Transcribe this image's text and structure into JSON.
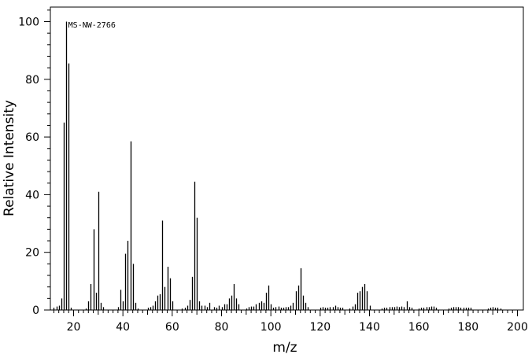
{
  "chart_data": {
    "type": "bar",
    "title": "",
    "xlabel": "m/z",
    "ylabel": "Relative Intensity",
    "xlim": [
      10,
      201
    ],
    "ylim": [
      0,
      105
    ],
    "grid": false,
    "annotations": [
      {
        "text": "MS-NW-2766",
        "x": 17.5,
        "y": 96
      }
    ],
    "x_major_ticks": [
      20,
      40,
      60,
      80,
      100,
      120,
      140,
      160,
      180,
      200
    ],
    "y_major_ticks": [
      0,
      20,
      40,
      60,
      80,
      100
    ],
    "peaks": [
      [
        12,
        0.8
      ],
      [
        13,
        1.2
      ],
      [
        14,
        1.5
      ],
      [
        15,
        4
      ],
      [
        16,
        65
      ],
      [
        17,
        100
      ],
      [
        18,
        85.5
      ],
      [
        19,
        0.8
      ],
      [
        25,
        0.5
      ],
      [
        26,
        3
      ],
      [
        27,
        9
      ],
      [
        28,
        28
      ],
      [
        29,
        6
      ],
      [
        30,
        41
      ],
      [
        31,
        2.5
      ],
      [
        32,
        1
      ],
      [
        38,
        1
      ],
      [
        39,
        7
      ],
      [
        40,
        3
      ],
      [
        41,
        19.5
      ],
      [
        42,
        24
      ],
      [
        43,
        58.5
      ],
      [
        44,
        16
      ],
      [
        45,
        2.5
      ],
      [
        46,
        0.5
      ],
      [
        50,
        0.8
      ],
      [
        51,
        1
      ],
      [
        52,
        1.5
      ],
      [
        53,
        3
      ],
      [
        54,
        5
      ],
      [
        55,
        5.5
      ],
      [
        56,
        31
      ],
      [
        57,
        8
      ],
      [
        58,
        15
      ],
      [
        59,
        11
      ],
      [
        60,
        3
      ],
      [
        64,
        0.5
      ],
      [
        65,
        0.8
      ],
      [
        66,
        1.5
      ],
      [
        67,
        3.5
      ],
      [
        68,
        11.5
      ],
      [
        69,
        44.5
      ],
      [
        70,
        32
      ],
      [
        71,
        3
      ],
      [
        72,
        1.5
      ],
      [
        73,
        1.5
      ],
      [
        74,
        1
      ],
      [
        75,
        2.5
      ],
      [
        77,
        1
      ],
      [
        78,
        0.8
      ],
      [
        79,
        1.5
      ],
      [
        80,
        1
      ],
      [
        81,
        2
      ],
      [
        82,
        2
      ],
      [
        83,
        4
      ],
      [
        84,
        5
      ],
      [
        85,
        9
      ],
      [
        86,
        4
      ],
      [
        87,
        2
      ],
      [
        90,
        0.5
      ],
      [
        91,
        1
      ],
      [
        92,
        1.2
      ],
      [
        93,
        1.2
      ],
      [
        94,
        2
      ],
      [
        95,
        2.5
      ],
      [
        96,
        3
      ],
      [
        97,
        2.5
      ],
      [
        98,
        6
      ],
      [
        99,
        8.5
      ],
      [
        100,
        2
      ],
      [
        101,
        0.8
      ],
      [
        102,
        1
      ],
      [
        103,
        1.2
      ],
      [
        104,
        0.8
      ],
      [
        105,
        0.8
      ],
      [
        106,
        1
      ],
      [
        107,
        1
      ],
      [
        108,
        1.5
      ],
      [
        109,
        2.5
      ],
      [
        110,
        6.5
      ],
      [
        111,
        8.5
      ],
      [
        112,
        14.5
      ],
      [
        113,
        5
      ],
      [
        114,
        2.5
      ],
      [
        115,
        1
      ],
      [
        120,
        0.8
      ],
      [
        121,
        1
      ],
      [
        122,
        0.8
      ],
      [
        123,
        0.8
      ],
      [
        124,
        1
      ],
      [
        125,
        1
      ],
      [
        126,
        1.5
      ],
      [
        127,
        1
      ],
      [
        128,
        0.8
      ],
      [
        129,
        0.8
      ],
      [
        132,
        0.5
      ],
      [
        133,
        1.2
      ],
      [
        134,
        2
      ],
      [
        135,
        6
      ],
      [
        136,
        6.5
      ],
      [
        137,
        8
      ],
      [
        138,
        9
      ],
      [
        139,
        6.5
      ],
      [
        140,
        1.5
      ],
      [
        145,
        0.5
      ],
      [
        146,
        0.8
      ],
      [
        147,
        0.8
      ],
      [
        148,
        1
      ],
      [
        149,
        1
      ],
      [
        150,
        1
      ],
      [
        151,
        1.2
      ],
      [
        152,
        1
      ],
      [
        153,
        1.2
      ],
      [
        154,
        1
      ],
      [
        155,
        3
      ],
      [
        156,
        1
      ],
      [
        157,
        0.8
      ],
      [
        160,
        0.5
      ],
      [
        161,
        0.8
      ],
      [
        162,
        0.8
      ],
      [
        163,
        1
      ],
      [
        164,
        1
      ],
      [
        165,
        1.2
      ],
      [
        166,
        1.2
      ],
      [
        167,
        0.8
      ],
      [
        172,
        0.5
      ],
      [
        173,
        0.8
      ],
      [
        174,
        1
      ],
      [
        175,
        1
      ],
      [
        176,
        1
      ],
      [
        177,
        0.8
      ],
      [
        178,
        0.8
      ],
      [
        179,
        0.8
      ],
      [
        180,
        0.8
      ],
      [
        181,
        0.8
      ],
      [
        188,
        0.5
      ],
      [
        189,
        0.8
      ],
      [
        190,
        1
      ],
      [
        191,
        0.8
      ],
      [
        192,
        0.8
      ],
      [
        193,
        0.5
      ]
    ]
  }
}
